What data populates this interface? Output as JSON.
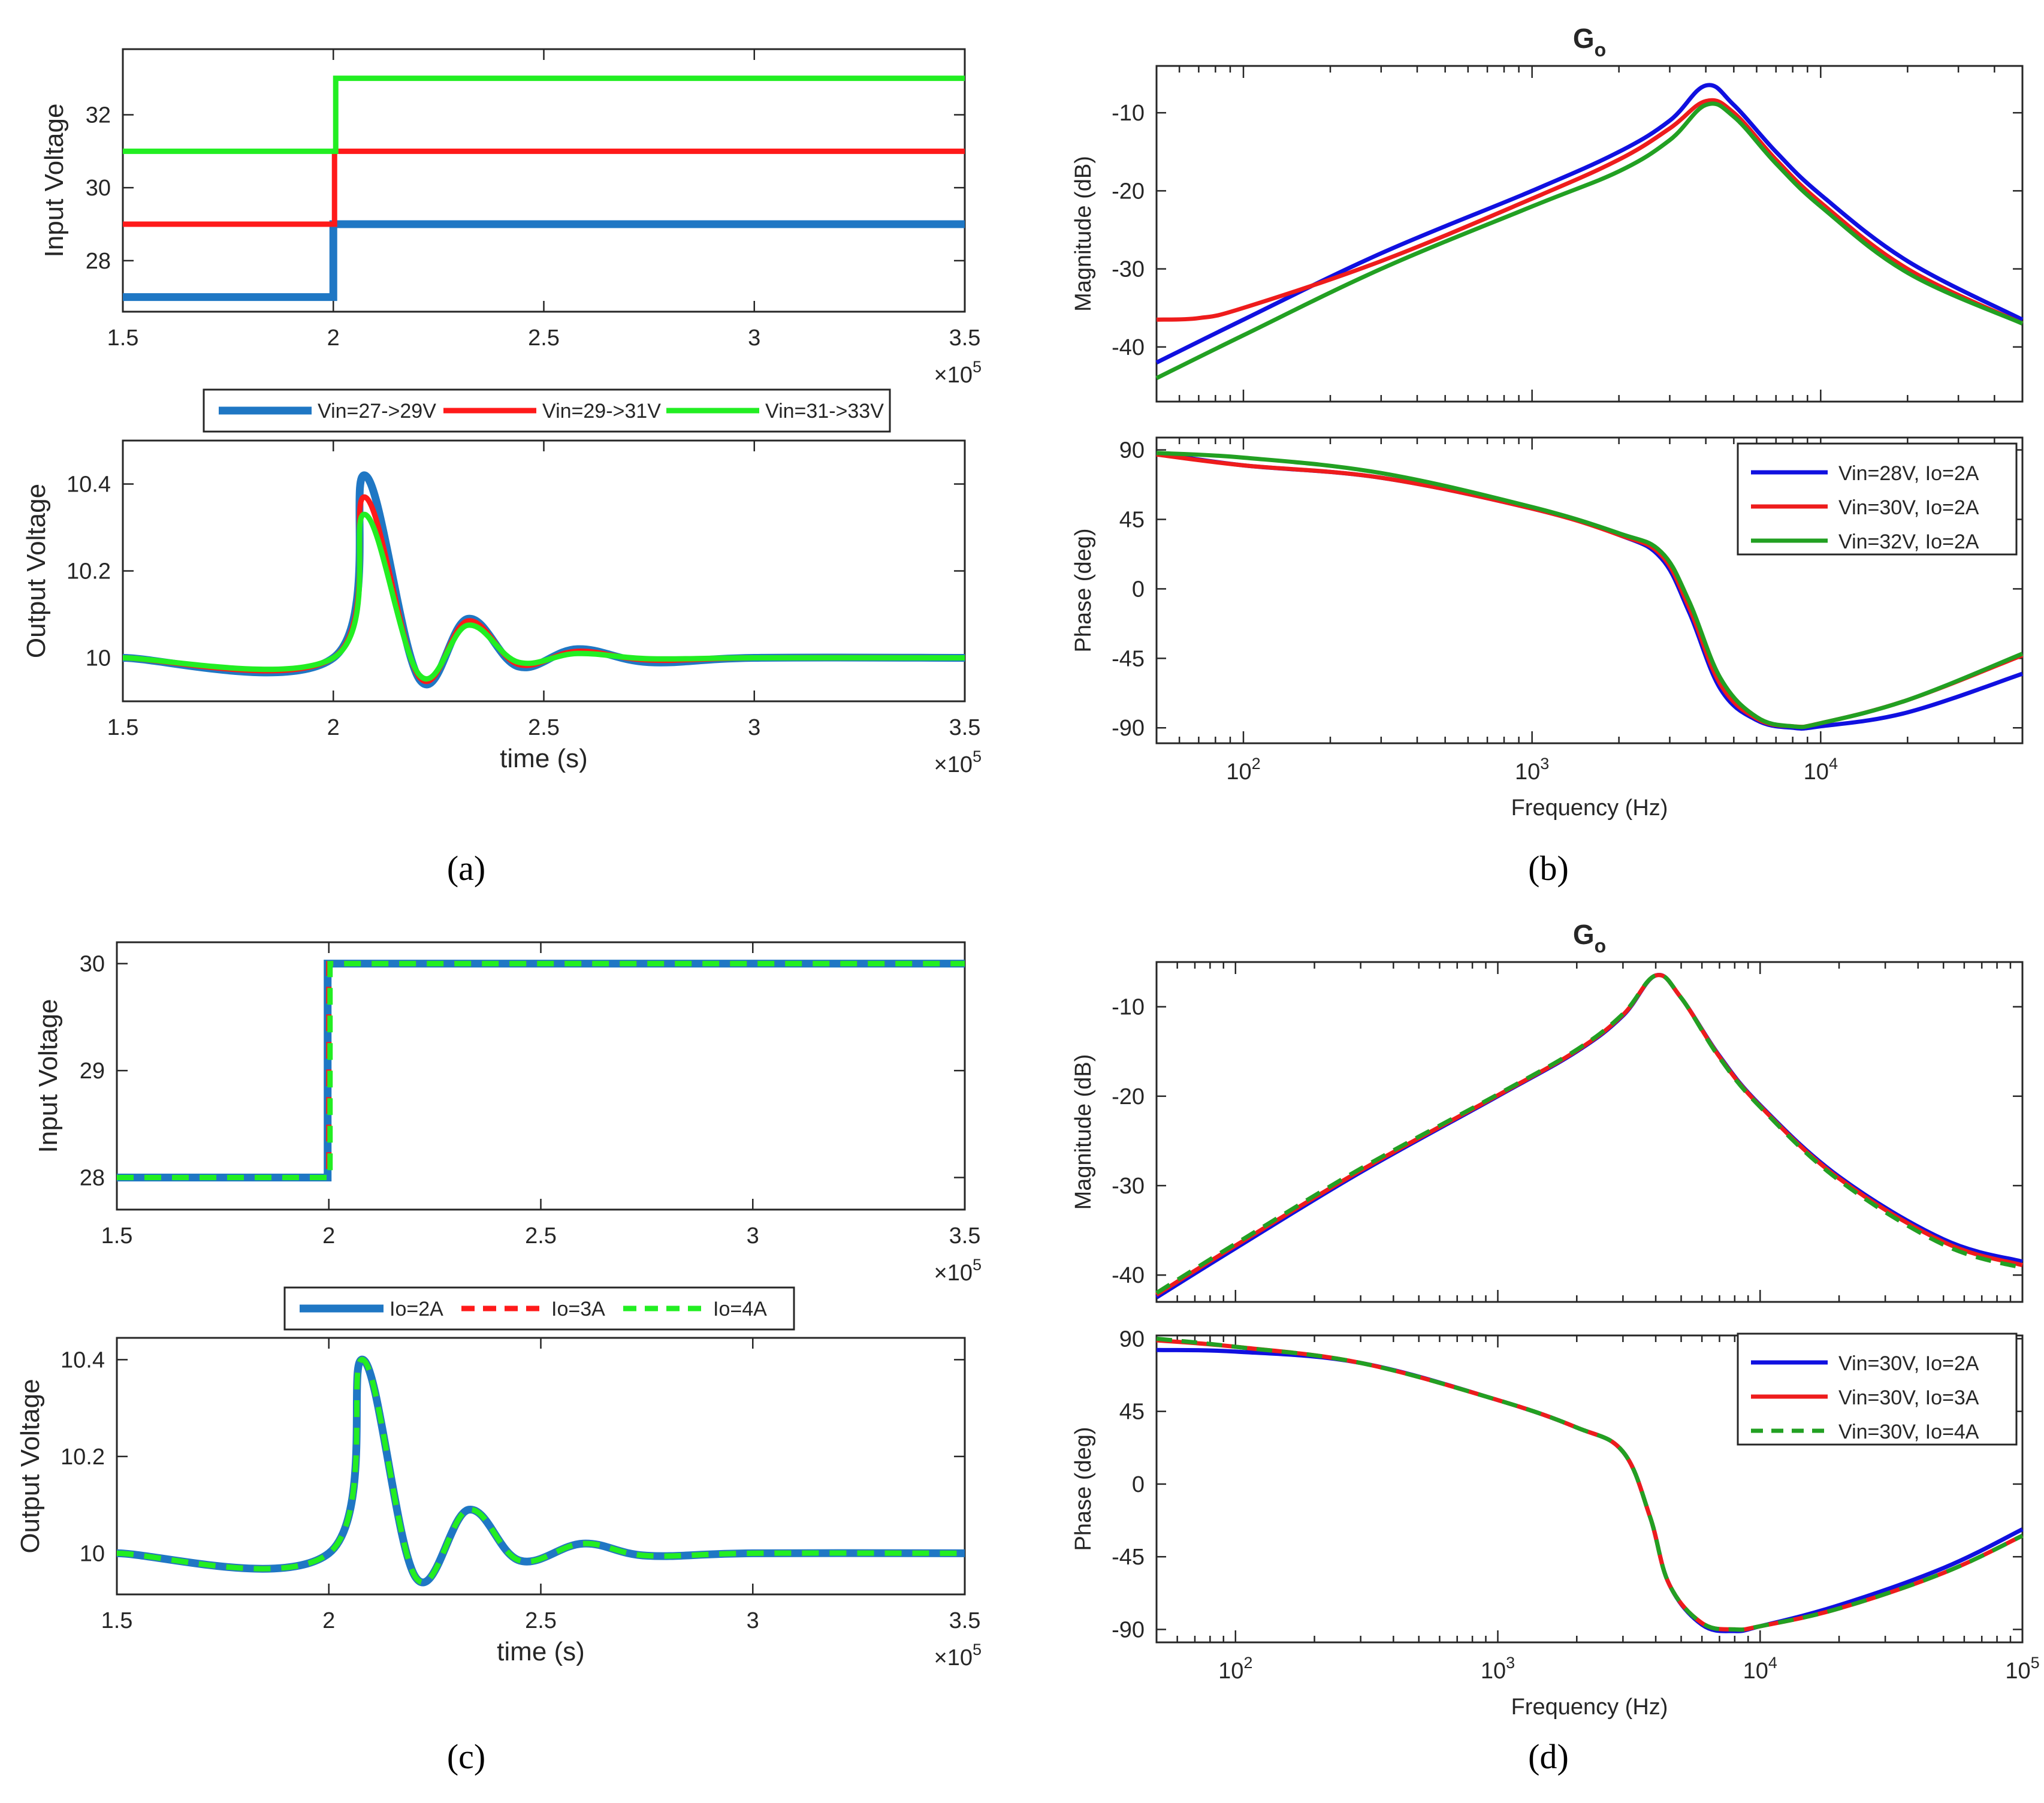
{
  "figure": {
    "captions": [
      "(a)",
      "(b)",
      "(c)",
      "(d)"
    ],
    "colors": {
      "ts_blue": "#1f77c4",
      "ts_red": "#ff1a1a",
      "ts_green": "#22ee22",
      "bode_blue": "#1010e0",
      "bode_red": "#ee1c1c",
      "bode_green": "#22a022"
    }
  },
  "chart_data": [
    {
      "id": "a",
      "type": "line",
      "xlabel": "time (s)",
      "exponent_label": "×10",
      "exponent_power": "5",
      "x_ticks": [
        "1.5",
        "2",
        "2.5",
        "3",
        "3.5"
      ],
      "xlim": [
        1.5,
        3.5
      ],
      "legend": [
        "Vin=27->29V",
        "Vin=29->31V",
        "Vin=31->33V"
      ],
      "top": {
        "ylabel": "Input Voltage",
        "ylim": [
          26.6,
          33.8
        ],
        "y_ticks": [
          "28",
          "30",
          "32"
        ],
        "series": [
          {
            "name": "Vin=27->29V",
            "step_at": 2.0,
            "before": 27,
            "after": 29
          },
          {
            "name": "Vin=29->31V",
            "step_at": 2.0,
            "before": 29,
            "after": 31
          },
          {
            "name": "Vin=31->33V",
            "step_at": 2.0,
            "before": 31,
            "after": 33
          }
        ]
      },
      "bottom": {
        "ylabel": "Output Voltage",
        "ylim": [
          9.9,
          10.5
        ],
        "y_ticks": [
          "10",
          "10.2",
          "10.4"
        ],
        "series": [
          {
            "name": "Vin=27->29V",
            "x": [
              1.5,
              2.0,
              2.075,
              2.205,
              2.32,
              2.44,
              2.58,
              2.75,
              3.0,
              3.5
            ],
            "y": [
              10.0,
              10.0,
              10.42,
              9.95,
              10.09,
              9.98,
              10.02,
              9.99,
              10.0,
              10.0
            ]
          },
          {
            "name": "Vin=29->31V",
            "x": [
              1.5,
              2.0,
              2.075,
              2.205,
              2.32,
              2.44,
              2.58,
              2.75,
              3.0,
              3.5
            ],
            "y": [
              10.0,
              10.0,
              10.37,
              9.955,
              10.085,
              9.985,
              10.015,
              9.995,
              10.0,
              10.0
            ]
          },
          {
            "name": "Vin=31->33V",
            "x": [
              1.5,
              2.0,
              2.075,
              2.205,
              2.32,
              2.44,
              2.58,
              2.75,
              3.0,
              3.5
            ],
            "y": [
              10.0,
              10.0,
              10.33,
              9.96,
              10.075,
              9.99,
              10.01,
              9.998,
              10.0,
              10.0
            ]
          }
        ]
      }
    },
    {
      "id": "b",
      "type": "line",
      "title_main": "G",
      "title_sub": "o",
      "xlabel": "Frequency  (Hz)",
      "x_scale": "log",
      "xlim": [
        50,
        50000
      ],
      "x_ticks": [
        {
          "base": "10",
          "exp": "2"
        },
        {
          "base": "10",
          "exp": "3"
        },
        {
          "base": "10",
          "exp": "4"
        }
      ],
      "legend": [
        "Vin=28V, Io=2A",
        "Vin=30V, Io=2A",
        "Vin=32V, Io=2A"
      ],
      "magnitude": {
        "ylabel": "Magnitude (dB)",
        "ylim": [
          -47,
          -4
        ],
        "y_ticks": [
          "-10",
          "-20",
          "-30",
          "-40"
        ],
        "series": [
          {
            "name": "Vin=28V, Io=2A",
            "x": [
              50,
              100,
              300,
              1000,
              2000,
              3000,
              4000,
              5000,
              7000,
              10000,
              20000,
              50000
            ],
            "y": [
              -42,
              -36.5,
              -28,
              -20,
              -15,
              -11,
              -6.5,
              -9,
              -15,
              -20.5,
              -29,
              -36.5
            ]
          },
          {
            "name": "Vin=30V, Io=2A",
            "x": [
              50,
              70,
              100,
              300,
              1000,
              2000,
              3000,
              4000,
              5000,
              7000,
              10000,
              20000,
              50000
            ],
            "y": [
              -36.5,
              -36.3,
              -35,
              -29,
              -21,
              -16,
              -12,
              -8.5,
              -10,
              -16,
              -21.5,
              -30,
              -37
            ]
          },
          {
            "name": "Vin=32V, Io=2A",
            "x": [
              50,
              100,
              300,
              1000,
              2000,
              3000,
              4000,
              5000,
              7000,
              10000,
              20000,
              50000
            ],
            "y": [
              -44,
              -38.5,
              -30,
              -22,
              -17.5,
              -13.5,
              -9,
              -10.5,
              -16.5,
              -22,
              -30.5,
              -37
            ]
          }
        ]
      },
      "phase": {
        "ylabel": "Phase (deg)",
        "ylim": [
          -100,
          98
        ],
        "y_ticks": [
          "90",
          "45",
          "0",
          "-45",
          "-90"
        ],
        "series": [
          {
            "name": "Vin=28V, Io=2A",
            "x": [
              50,
              100,
              300,
              1000,
              2000,
              2800,
              3500,
              4500,
              6000,
              8000,
              10000,
              20000,
              50000
            ],
            "y": [
              88,
              80,
              72,
              52,
              35,
              20,
              -15,
              -65,
              -85,
              -90,
              -89,
              -80,
              -55
            ]
          },
          {
            "name": "Vin=30V, Io=2A",
            "x": [
              50,
              100,
              300,
              1000,
              2000,
              2800,
              3500,
              4500,
              6000,
              8000,
              10000,
              20000,
              50000
            ],
            "y": [
              87,
              80,
              72,
              52,
              35,
              22,
              -12,
              -62,
              -84,
              -89,
              -87,
              -72,
              -43
            ]
          },
          {
            "name": "Vin=32V, Io=2A",
            "x": [
              50,
              100,
              300,
              1000,
              2000,
              2800,
              3500,
              4500,
              6000,
              8000,
              10000,
              20000,
              50000
            ],
            "y": [
              88,
              85,
              75,
              53,
              36,
              24,
              -8,
              -58,
              -83,
              -89,
              -87,
              -72,
              -42
            ]
          }
        ]
      }
    },
    {
      "id": "c",
      "type": "line",
      "xlabel": "time (s)",
      "exponent_label": "×10",
      "exponent_power": "5",
      "x_ticks": [
        "1.5",
        "2",
        "2.5",
        "3",
        "3.5"
      ],
      "xlim": [
        1.5,
        3.5
      ],
      "legend": [
        "Io=2A",
        "Io=3A",
        "Io=4A"
      ],
      "top": {
        "ylabel": "Input Voltage",
        "ylim": [
          27.7,
          30.2
        ],
        "y_ticks": [
          "28",
          "29",
          "30"
        ],
        "series": [
          {
            "name": "Io=2A",
            "step_at": 2.0,
            "before": 28,
            "after": 30
          },
          {
            "name": "Io=3A",
            "step_at": 2.0,
            "before": 28,
            "after": 30
          },
          {
            "name": "Io=4A",
            "step_at": 2.0,
            "before": 28,
            "after": 30
          }
        ]
      },
      "bottom": {
        "ylabel": "Output Voltage",
        "ylim": [
          9.915,
          10.445
        ],
        "y_ticks": [
          "10",
          "10.2",
          "10.4"
        ],
        "series": [
          {
            "name": "Io=2A",
            "x": [
              1.5,
              2.0,
              2.08,
              2.205,
              2.33,
              2.45,
              2.6,
              2.75,
              3.0,
              3.5
            ],
            "y": [
              10.0,
              10.0,
              10.4,
              9.95,
              10.09,
              9.985,
              10.02,
              9.995,
              10.0,
              10.0
            ]
          },
          {
            "name": "Io=3A",
            "x": [
              1.5,
              2.0,
              2.08,
              2.205,
              2.33,
              2.45,
              2.6,
              2.75,
              3.0,
              3.5
            ],
            "y": [
              10.0,
              10.0,
              10.4,
              9.95,
              10.09,
              9.985,
              10.02,
              9.995,
              10.0,
              10.0
            ]
          },
          {
            "name": "Io=4A",
            "x": [
              1.5,
              2.0,
              2.08,
              2.205,
              2.33,
              2.45,
              2.6,
              2.75,
              3.0,
              3.5
            ],
            "y": [
              10.0,
              10.0,
              10.4,
              9.95,
              10.09,
              9.985,
              10.02,
              9.995,
              10.0,
              10.0
            ]
          }
        ]
      }
    },
    {
      "id": "d",
      "type": "line",
      "title_main": "G",
      "title_sub": "o",
      "xlabel": "Frequency  (Hz)",
      "x_scale": "log",
      "xlim": [
        50,
        100000
      ],
      "x_ticks": [
        {
          "base": "10",
          "exp": "2"
        },
        {
          "base": "10",
          "exp": "3"
        },
        {
          "base": "10",
          "exp": "4"
        },
        {
          "base": "10",
          "exp": "5"
        }
      ],
      "legend": [
        "Vin=30V, Io=2A",
        "Vin=30V, Io=3A",
        "Vin=30V, Io=4A"
      ],
      "magnitude": {
        "ylabel": "Magnitude (dB)",
        "ylim": [
          -43,
          -5
        ],
        "y_ticks": [
          "-10",
          "-20",
          "-30",
          "-40"
        ],
        "series": [
          {
            "name": "Vin=30V, Io=2A",
            "x": [
              50,
              100,
              300,
              1000,
              2000,
              3000,
              4000,
              5000,
              7000,
              10000,
              20000,
              50000,
              100000
            ],
            "y": [
              -42.5,
              -37,
              -28.5,
              -20,
              -15,
              -11,
              -6.5,
              -9,
              -15.5,
              -21,
              -29,
              -36,
              -38.5
            ]
          },
          {
            "name": "Vin=30V, Io=3A",
            "x": [
              50,
              100,
              300,
              1000,
              2000,
              3000,
              4000,
              5000,
              7000,
              10000,
              20000,
              50000,
              100000
            ],
            "y": [
              -42.2,
              -36.7,
              -28.3,
              -19.9,
              -14.9,
              -10.9,
              -6.5,
              -9,
              -15.6,
              -21.1,
              -29.2,
              -36.3,
              -38.9
            ]
          },
          {
            "name": "Vin=30V, Io=4A",
            "x": [
              50,
              100,
              300,
              1000,
              2000,
              3000,
              4000,
              5000,
              7000,
              10000,
              20000,
              50000,
              100000
            ],
            "y": [
              -42,
              -36.5,
              -28.1,
              -19.8,
              -14.8,
              -10.8,
              -6.5,
              -9,
              -15.7,
              -21.2,
              -29.4,
              -36.6,
              -39.2
            ]
          }
        ]
      },
      "phase": {
        "ylabel": "Phase (deg)",
        "ylim": [
          -98,
          92
        ],
        "y_ticks": [
          "90",
          "45",
          "0",
          "-45",
          "-90"
        ],
        "series": [
          {
            "name": "Vin=30V, Io=2A",
            "x": [
              50,
              100,
              300,
              1000,
              2000,
              3000,
              3800,
              4500,
              6000,
              8000,
              10000,
              20000,
              50000,
              100000
            ],
            "y": [
              83,
              82,
              75,
              52,
              35,
              20,
              -20,
              -62,
              -87,
              -91,
              -88,
              -75,
              -52,
              -28
            ]
          },
          {
            "name": "Vin=30V, Io=3A",
            "x": [
              50,
              100,
              300,
              1000,
              2000,
              3000,
              3800,
              4500,
              6000,
              8000,
              10000,
              20000,
              50000,
              100000
            ],
            "y": [
              89,
              85,
              75,
              52,
              35,
              20,
              -20,
              -62,
              -86,
              -90,
              -88,
              -77,
              -55,
              -32
            ]
          },
          {
            "name": "Vin=30V, Io=4A",
            "x": [
              50,
              100,
              300,
              1000,
              2000,
              3000,
              3800,
              4500,
              6000,
              8000,
              10000,
              20000,
              50000,
              100000
            ],
            "y": [
              90,
              85,
              75,
              52,
              35,
              20,
              -20,
              -62,
              -86,
              -90,
              -88,
              -77,
              -55,
              -32
            ]
          }
        ]
      }
    }
  ]
}
